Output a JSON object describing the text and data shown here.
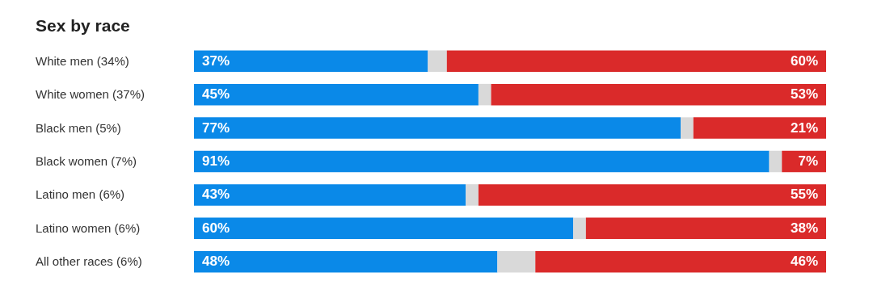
{
  "chart_data": {
    "type": "bar",
    "orientation": "horizontal",
    "stacked": true,
    "title": "Sex by race",
    "categories": [
      "White men (34%)",
      "White women (37%)",
      "Black men (5%)",
      "Black women (7%)",
      "Latino men (6%)",
      "Latino women (6%)",
      "All other races (6%)"
    ],
    "series": [
      {
        "color": "#0a89e8",
        "values": [
          37,
          45,
          77,
          91,
          43,
          60,
          48
        ],
        "value_labels": [
          "37%",
          "45%",
          "77%",
          "91%",
          "43%",
          "60%",
          "48%"
        ]
      },
      {
        "color": "#d9d9d9",
        "values": [
          3,
          2,
          2,
          2,
          2,
          2,
          6
        ]
      },
      {
        "color": "#da2a2a",
        "values": [
          60,
          53,
          21,
          7,
          55,
          38,
          46
        ],
        "value_labels": [
          "60%",
          "53%",
          "21%",
          "7%",
          "55%",
          "38%",
          "46%"
        ]
      }
    ]
  }
}
